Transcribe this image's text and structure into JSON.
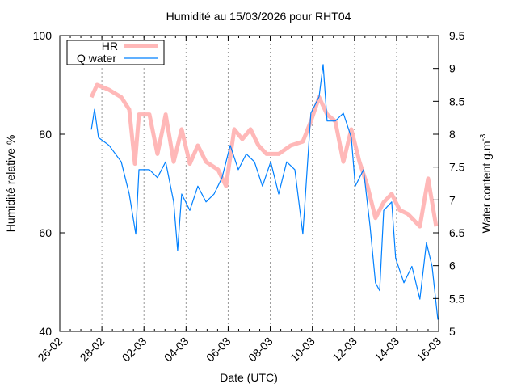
{
  "chart_data": {
    "type": "line",
    "title": "Humidité au 15/03/2026 pour RHT04",
    "xlabel": "Date (UTC)",
    "ylabel": "Humidité relative %",
    "y2label_main": "Water content g.m",
    "y2label_sup": "-3",
    "x_unit": "days since 26-02",
    "xlim": [
      0,
      18
    ],
    "ylim": [
      40,
      100
    ],
    "y2lim": [
      5,
      9.5
    ],
    "x_ticks": [
      "26-02",
      "28-02",
      "02-03",
      "04-03",
      "06-03",
      "08-03",
      "10-03",
      "12-03",
      "14-03",
      "16-03"
    ],
    "y_ticks": [
      "40",
      "60",
      "80",
      "100"
    ],
    "y2_ticks": [
      "5",
      "5.5",
      "6",
      "6.5",
      "7",
      "7.5",
      "8",
      "8.5",
      "9",
      "9.5"
    ],
    "grid": "vertical dotted at date ticks",
    "legend_position": "top-left",
    "series": [
      {
        "name": "HR",
        "axis": "left",
        "color": "#ffb8b8",
        "x": [
          1.5,
          1.77,
          2.34,
          2.92,
          3.3,
          3.57,
          3.76,
          4.26,
          4.64,
          5.03,
          5.41,
          5.79,
          6.18,
          6.56,
          6.95,
          7.52,
          7.9,
          8.29,
          8.67,
          9.06,
          9.44,
          9.82,
          10.4,
          10.97,
          11.55,
          11.93,
          12.32,
          12.7,
          13.09,
          13.47,
          13.85,
          14.24,
          14.62,
          15.0,
          15.39,
          15.77,
          16.15,
          16.54,
          17.11,
          17.5,
          17.88
        ],
        "y": [
          87.5,
          90,
          89,
          87.5,
          85,
          74,
          84,
          84,
          76,
          84,
          74.4,
          81,
          74,
          77.7,
          74.4,
          72.8,
          69.5,
          81,
          79,
          81,
          77.7,
          76,
          76,
          77.7,
          78.5,
          82.6,
          87.5,
          84,
          82.6,
          74.4,
          81,
          74.4,
          69.5,
          63,
          66.2,
          67.9,
          64.6,
          63.8,
          61.3,
          71,
          61.3
        ]
      },
      {
        "name": "Q water",
        "axis": "right",
        "color": "#0080ff",
        "x": [
          1.5,
          1.65,
          1.84,
          2.34,
          2.92,
          3.3,
          3.61,
          3.76,
          4.26,
          4.64,
          5.03,
          5.41,
          5.6,
          5.79,
          6.18,
          6.56,
          6.95,
          7.33,
          7.71,
          8.1,
          8.48,
          8.86,
          9.25,
          9.63,
          10.02,
          10.4,
          10.78,
          11.17,
          11.55,
          11.93,
          12.32,
          12.51,
          12.7,
          13.09,
          13.47,
          13.85,
          14.04,
          14.43,
          14.74,
          15.0,
          15.2,
          15.39,
          15.77,
          15.96,
          16.35,
          16.73,
          17.11,
          17.42,
          17.69,
          17.96
        ],
        "y": [
          8.07,
          8.38,
          7.95,
          7.83,
          7.58,
          7.09,
          6.48,
          7.46,
          7.46,
          7.34,
          7.58,
          6.97,
          6.23,
          7.09,
          6.84,
          7.21,
          6.97,
          7.09,
          7.34,
          7.83,
          7.46,
          7.7,
          7.58,
          7.21,
          7.58,
          7.09,
          7.58,
          7.46,
          6.48,
          8.32,
          8.57,
          9.06,
          8.2,
          8.2,
          8.32,
          7.95,
          7.21,
          7.46,
          6.6,
          5.74,
          5.62,
          6.84,
          6.97,
          6.11,
          5.74,
          5.99,
          5.49,
          6.35,
          5.99,
          5.18
        ]
      }
    ]
  }
}
